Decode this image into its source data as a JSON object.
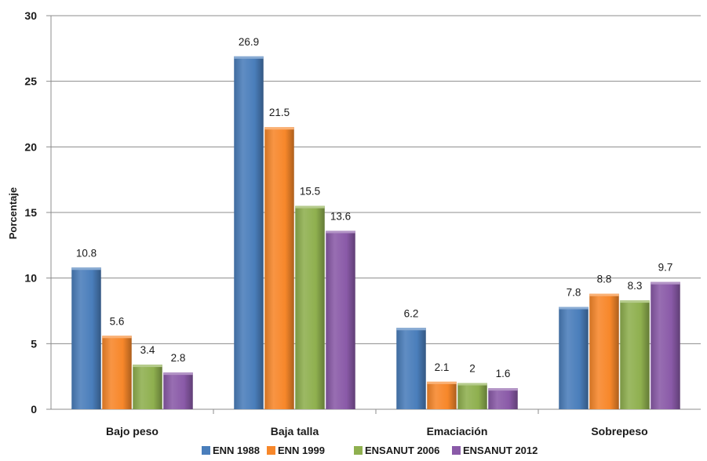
{
  "chart_data": {
    "type": "bar",
    "title": "",
    "xlabel": "",
    "ylabel": "Porcentaje",
    "ylim": [
      0,
      30
    ],
    "yticks": [
      0,
      5,
      10,
      15,
      20,
      25,
      30
    ],
    "grid": true,
    "legend_position": "bottom",
    "categories": [
      "Bajo peso",
      "Baja talla",
      "Emaciación",
      "Sobrepeso"
    ],
    "series": [
      {
        "name": "ENN 1988",
        "color": "#4a7ebb",
        "values": [
          10.8,
          26.9,
          6.2,
          7.8
        ],
        "labels": [
          "10.8",
          "26.9",
          "6.2",
          "7.8"
        ]
      },
      {
        "name": "ENN 1999",
        "color": "#f7872a",
        "values": [
          5.6,
          21.5,
          2.1,
          8.8
        ],
        "labels": [
          "5.6",
          "21.5",
          "2.1",
          "8.8"
        ]
      },
      {
        "name": "ENSANUT 2006",
        "color": "#8fb04f",
        "values": [
          3.4,
          15.5,
          2,
          8.3
        ],
        "labels": [
          "3.4",
          "15.5",
          "2",
          "8.3"
        ]
      },
      {
        "name": "ENSANUT 2012",
        "color": "#8a5aa8",
        "values": [
          2.8,
          13.6,
          1.6,
          9.7
        ],
        "labels": [
          "2.8",
          "13.6",
          "1.6",
          "9.7"
        ]
      }
    ]
  }
}
